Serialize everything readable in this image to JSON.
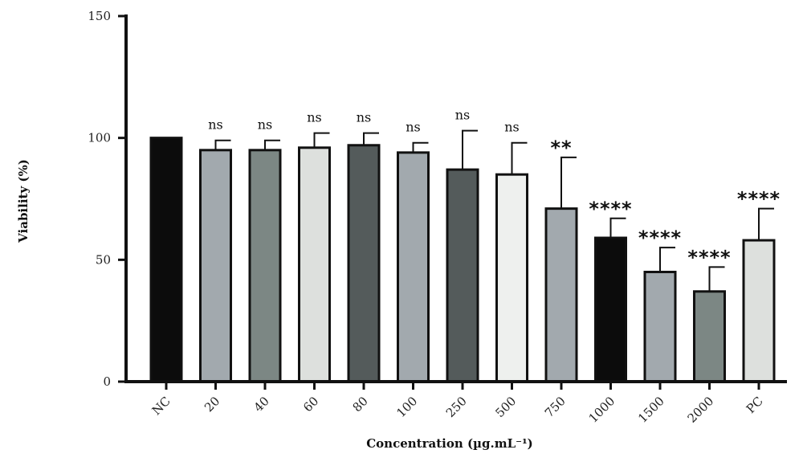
{
  "chart_data": {
    "type": "bar",
    "xlabel": "Concentration (µg.mL⁻¹)",
    "ylabel": "Viability (%)",
    "ylim": [
      0,
      150
    ],
    "yticks": [
      "0",
      "50",
      "100",
      "150"
    ],
    "grid": false,
    "categories": [
      "NC",
      "20",
      "40",
      "60",
      "80",
      "100",
      "250",
      "500",
      "750",
      "1000",
      "1500",
      "2000",
      "PC"
    ],
    "values": [
      100,
      95,
      95,
      96,
      97,
      94,
      87,
      85,
      71,
      59,
      45,
      37,
      58
    ],
    "errors": [
      0,
      4,
      4,
      6,
      5,
      4,
      16,
      13,
      21,
      8,
      10,
      10,
      13
    ],
    "significance": [
      "",
      "ns",
      "ns",
      "ns",
      "ns",
      "ns",
      "ns",
      "ns",
      "**",
      "****",
      "****",
      "****",
      "****"
    ],
    "colors": [
      "#0c0c0c",
      "#a2a9ae",
      "#7c8784",
      "#dde0dd",
      "#545b5b",
      "#a2a9ae",
      "#545b5b",
      "#eef0ee",
      "#a2a9ae",
      "#0c0c0c",
      "#a2a9ae",
      "#7c8784",
      "#dde0dd"
    ]
  }
}
